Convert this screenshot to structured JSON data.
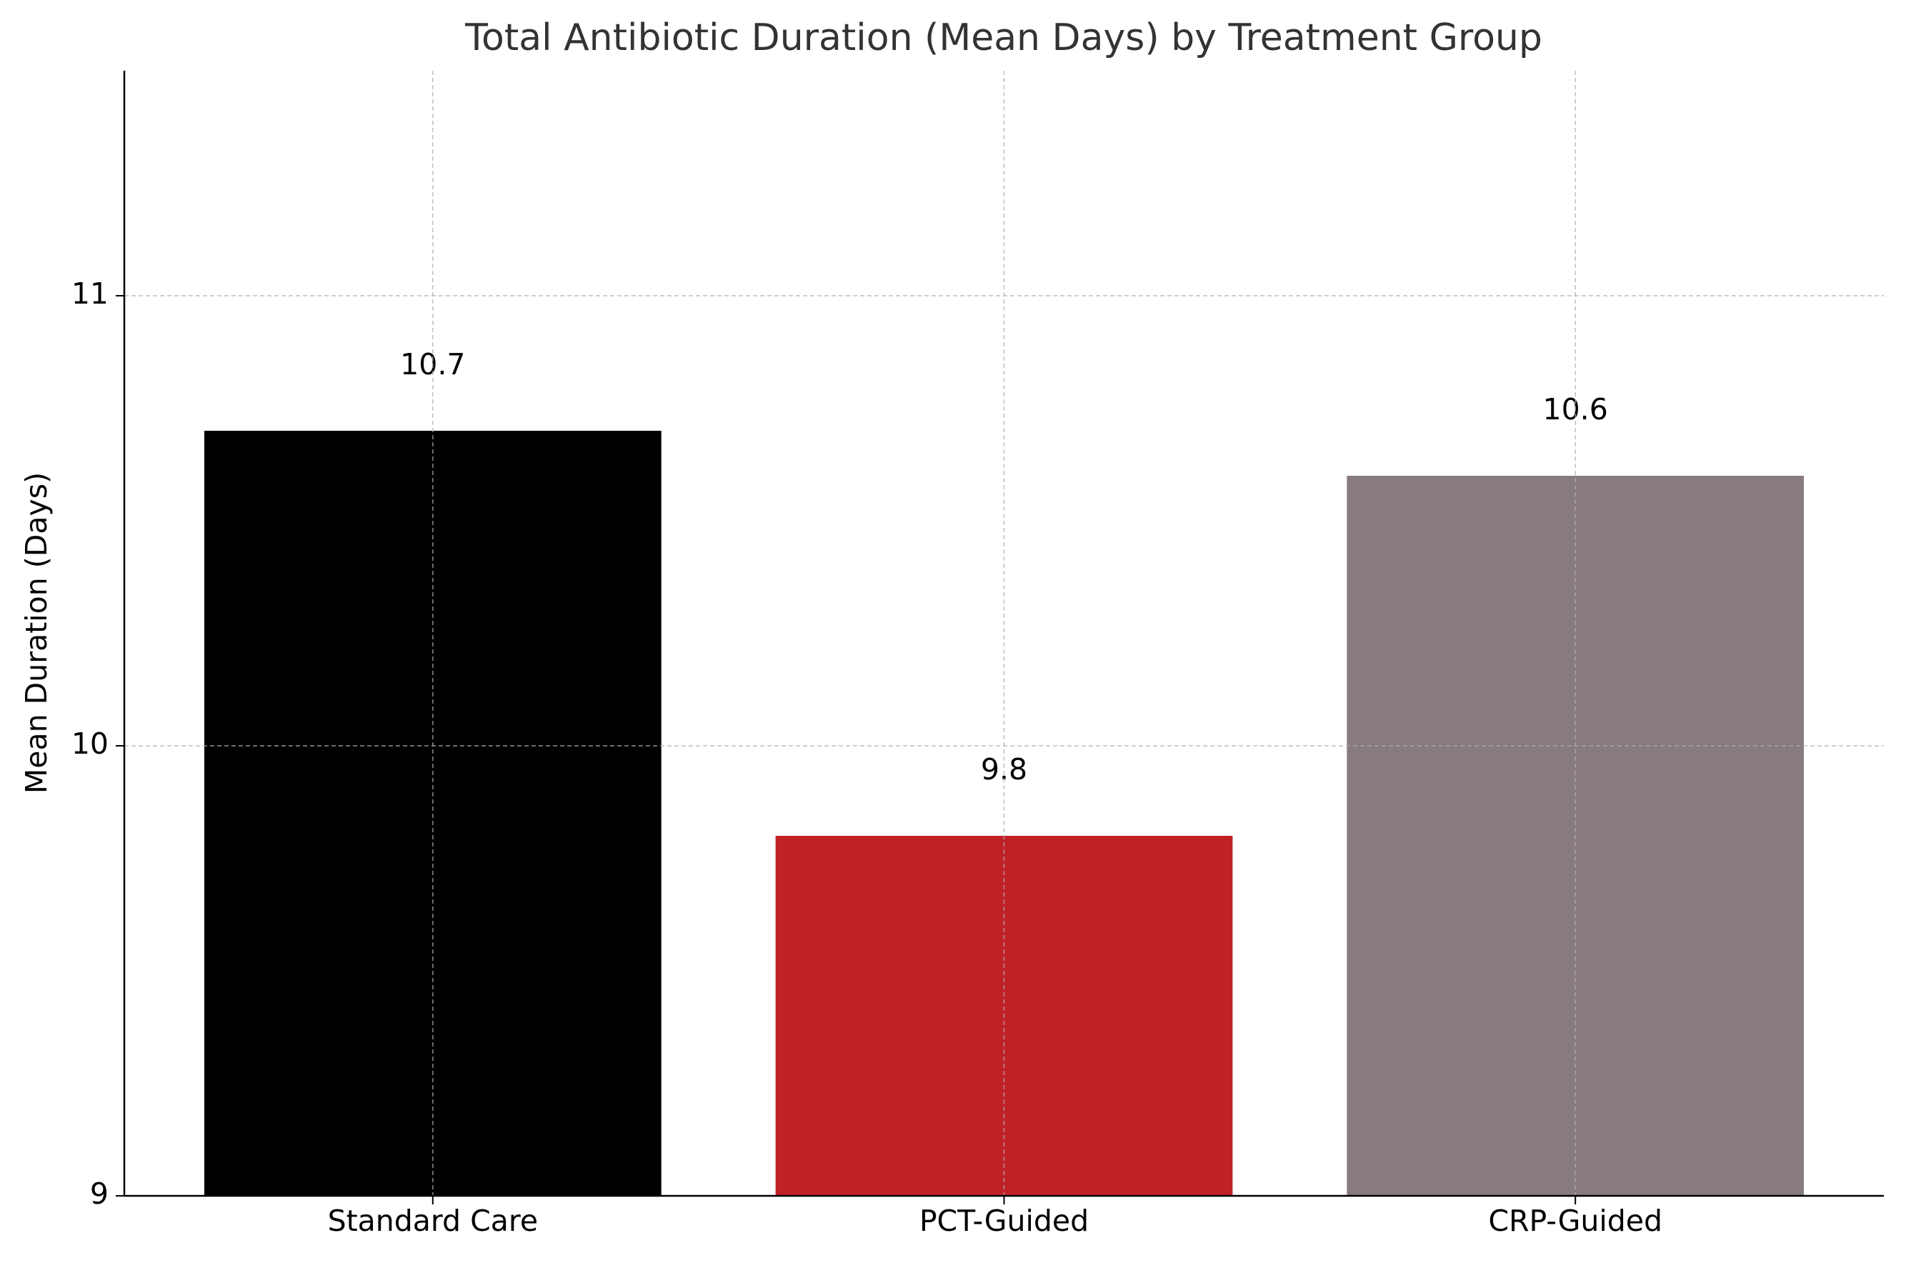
{
  "chart_data": {
    "type": "bar",
    "title": "Total Antibiotic Duration (Mean Days) by Treatment Group",
    "y_label": "Mean Duration (Days)",
    "categories": [
      "Standard Care",
      "PCT-Guided",
      "CRP-Guided"
    ],
    "values": [
      10.7,
      9.8,
      10.6
    ],
    "colors": [
      "#000000",
      "#c02127",
      "#877b7f"
    ],
    "ylim": [
      9,
      11.5
    ],
    "yticks": [
      9,
      10,
      11
    ],
    "grid": true
  }
}
